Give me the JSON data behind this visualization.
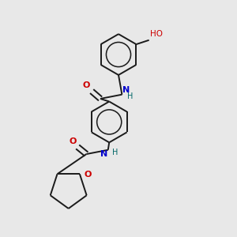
{
  "background_color": "#e8e8e8",
  "bond_color": "#1a1a1a",
  "N_color": "#0000cc",
  "O_color": "#cc0000",
  "H_color": "#006666",
  "line_width": 1.4,
  "figsize": [
    3.0,
    3.0
  ],
  "dpi": 100,
  "xlim": [
    0.0,
    1.0
  ],
  "ylim": [
    0.0,
    1.0
  ]
}
